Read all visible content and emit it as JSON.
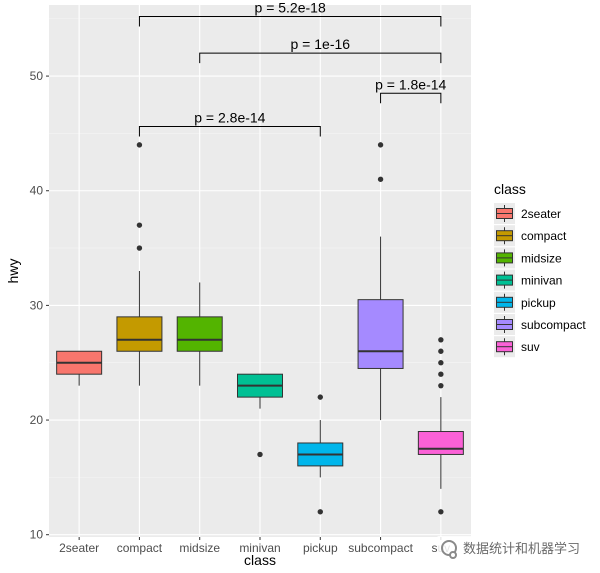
{
  "chart_data": {
    "type": "box",
    "xlabel": "class",
    "ylabel": "hwy",
    "ylim": [
      9.8,
      56.2
    ],
    "yticks": [
      10,
      20,
      30,
      40,
      50
    ],
    "categories": [
      "2seater",
      "compact",
      "midsize",
      "minivan",
      "pickup",
      "subcompact",
      "suv"
    ],
    "legend": {
      "title": "class",
      "entries": [
        "2seater",
        "compact",
        "midsize",
        "minivan",
        "pickup",
        "subcompact",
        "suv"
      ],
      "placement": "right"
    },
    "boxes": [
      {
        "category": "2seater",
        "min": 23,
        "q1": 24,
        "median": 25,
        "q3": 26,
        "max": 26,
        "outliers": [],
        "color": "#F8766D"
      },
      {
        "category": "compact",
        "min": 23,
        "q1": 26,
        "median": 27,
        "q3": 29,
        "max": 33,
        "outliers": [
          35,
          37,
          44
        ],
        "color": "#C49A00"
      },
      {
        "category": "midsize",
        "min": 23,
        "q1": 26,
        "median": 27,
        "q3": 29,
        "max": 32,
        "outliers": [],
        "color": "#53B400"
      },
      {
        "category": "minivan",
        "min": 21,
        "q1": 22,
        "median": 23,
        "q3": 24,
        "max": 24,
        "outliers": [
          17
        ],
        "color": "#00C094"
      },
      {
        "category": "pickup",
        "min": 15,
        "q1": 16,
        "median": 17,
        "q3": 18,
        "max": 20,
        "outliers": [
          12,
          22
        ],
        "color": "#00B6EB"
      },
      {
        "category": "subcompact",
        "min": 20,
        "q1": 24.5,
        "median": 26,
        "q3": 30.5,
        "max": 36,
        "outliers": [
          41,
          44
        ],
        "color": "#A58AFF"
      },
      {
        "category": "suv",
        "min": 14,
        "q1": 17,
        "median": 17.5,
        "q3": 19,
        "max": 22,
        "outliers": [
          12,
          23,
          24,
          25,
          26,
          27
        ],
        "color": "#FB61D7"
      }
    ],
    "comparisons": [
      {
        "from": "compact",
        "to": "pickup",
        "y": 45.6,
        "label": "p = 2.8e-14"
      },
      {
        "from": "subcompact",
        "to": "suv",
        "y": 48.5,
        "label": "p = 1.8e-14"
      },
      {
        "from": "midsize",
        "to": "suv",
        "y": 52.0,
        "label": "p = 1e-16"
      },
      {
        "from": "compact",
        "to": "suv",
        "y": 55.2,
        "label": "p = 5.2e-18"
      }
    ],
    "grid": true
  },
  "watermark": {
    "text": "数据统计和机器学习"
  }
}
